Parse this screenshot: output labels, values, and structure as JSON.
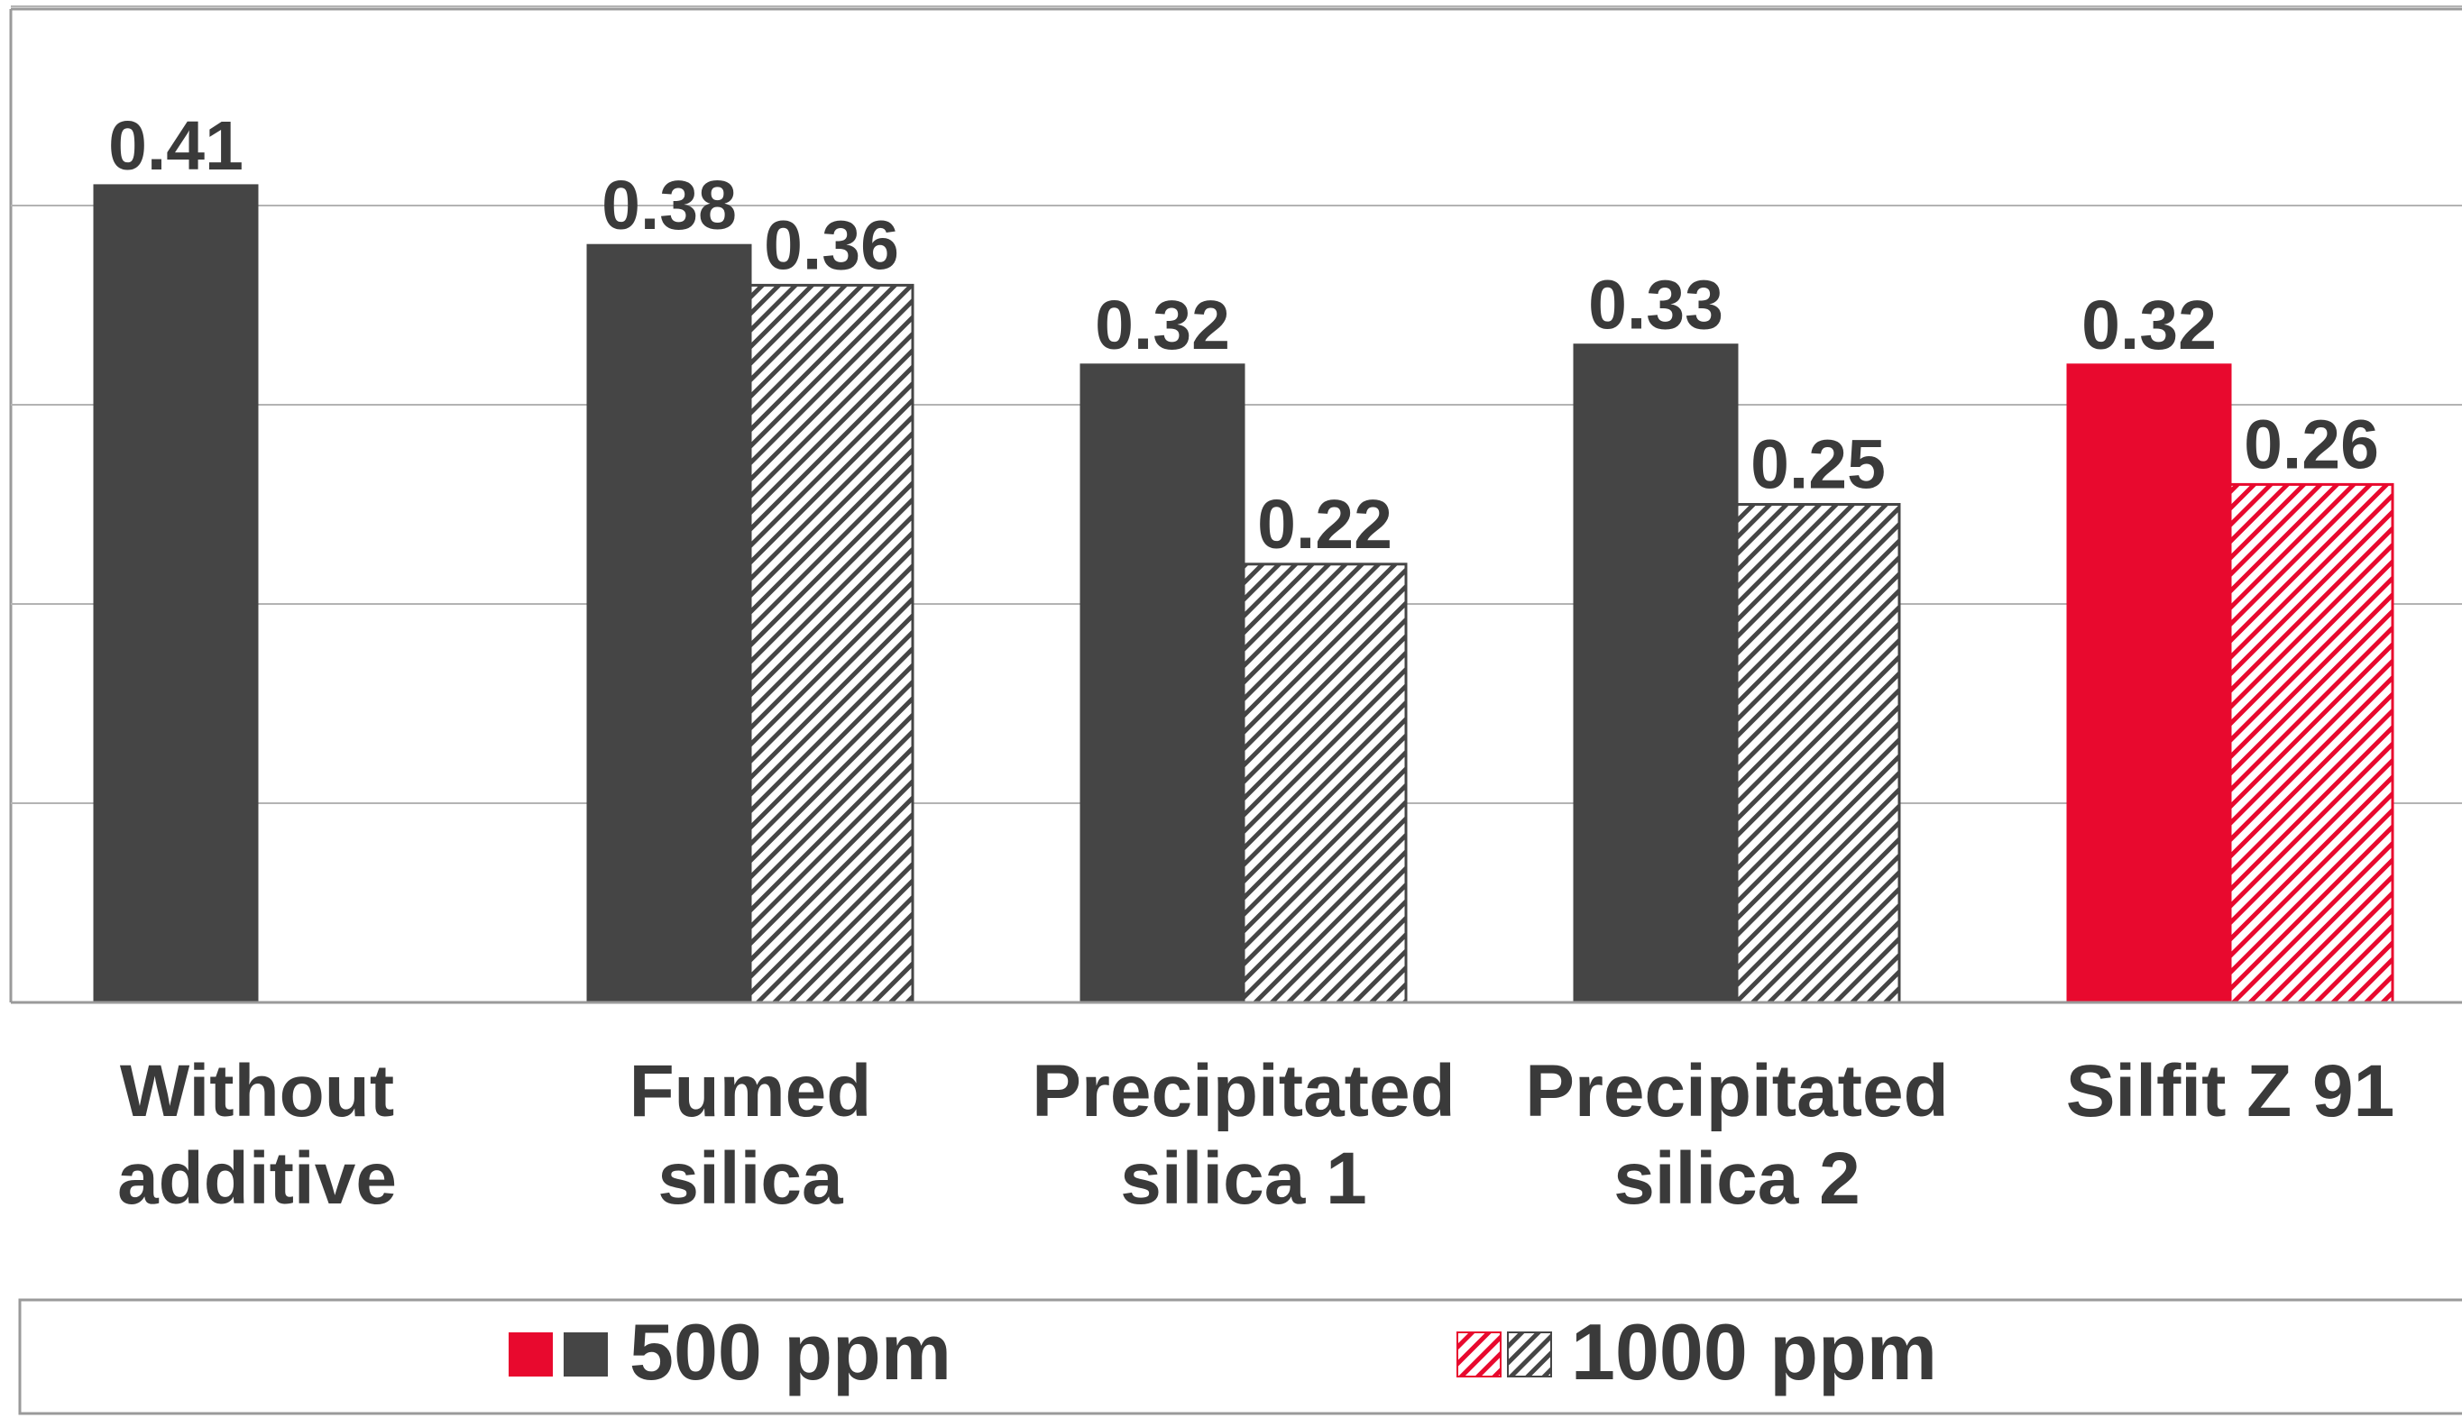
{
  "chart_data": {
    "type": "bar",
    "categories": [
      [
        "Without",
        "additive"
      ],
      [
        "Fumed",
        "silica"
      ],
      [
        "Precipitated",
        "silica 1"
      ],
      [
        "Precipitated",
        "silica 2"
      ],
      [
        "Silfit Z 91"
      ]
    ],
    "series": [
      {
        "name": "500 ppm",
        "values": [
          0.41,
          0.38,
          0.32,
          0.33,
          0.32
        ],
        "labels": [
          "0.41",
          "0.38",
          "0.32",
          "0.33",
          "0.32"
        ],
        "pattern": "solid"
      },
      {
        "name": "1000 ppm",
        "values": [
          null,
          0.36,
          0.22,
          0.25,
          0.26
        ],
        "labels": [
          null,
          "0.36",
          "0.22",
          "0.25",
          "0.26"
        ],
        "pattern": "hatched"
      }
    ],
    "ylim": [
      0,
      0.5
    ],
    "gridlines": [
      0.1,
      0.2,
      0.3,
      0.4,
      0.5
    ],
    "grid": true,
    "legend_position": "bottom",
    "colors": {
      "default": "#454545",
      "highlight": "#e8092e",
      "highlight_category": 4,
      "gridline": "#b3b3b3",
      "axis": "#9a9a9a",
      "label": "#3a3a3a"
    }
  }
}
